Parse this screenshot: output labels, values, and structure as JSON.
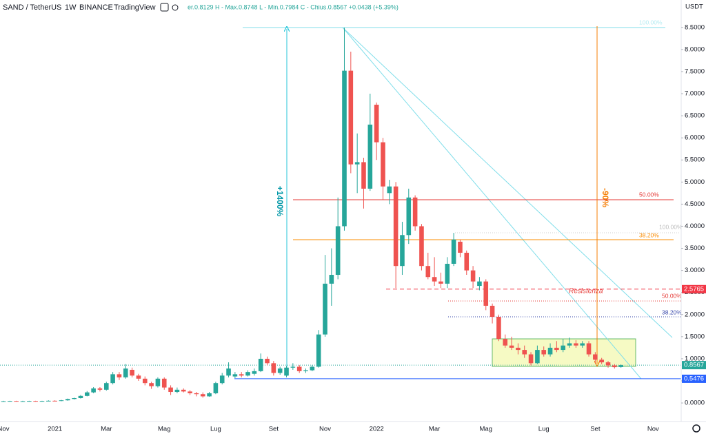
{
  "header": {
    "symbol": "SAND / TetherUS",
    "interval": "1W",
    "exchange": "BINANCE",
    "source": "TradingView",
    "ohlc": "er.0.8129 H - Max.0.8748 L - Min.0.7984 C - Chius.0.8567 +0.0438 (+5.39%)",
    "currency": "USDT"
  },
  "chart_data": {
    "type": "candlestick",
    "categories": [
      "Nov",
      null,
      null,
      null,
      null,
      null,
      null,
      null,
      "2021",
      null,
      null,
      null,
      null,
      null,
      null,
      null,
      "Mar",
      null,
      null,
      null,
      null,
      null,
      null,
      null,
      null,
      "Mag",
      null,
      null,
      null,
      null,
      null,
      null,
      null,
      "Lug",
      null,
      null,
      null,
      null,
      null,
      null,
      null,
      null,
      "Set",
      null,
      null,
      null,
      null,
      null,
      null,
      null,
      "Nov",
      null,
      null,
      null,
      null,
      null,
      null,
      null,
      "2022",
      null,
      null,
      null,
      null,
      null,
      null,
      null,
      null,
      "Mar",
      null,
      null,
      null,
      null,
      null,
      null,
      null,
      "Mag",
      null,
      null,
      null,
      null,
      null,
      null,
      null,
      null,
      "Lug",
      null,
      null,
      null,
      null,
      null,
      null,
      null,
      "Set",
      null,
      null,
      null,
      null,
      null,
      null,
      null,
      null,
      "Nov"
    ],
    "open": [
      0.04,
      0.04,
      0.045,
      0.04,
      0.04,
      0.045,
      0.04,
      0.045,
      0.05,
      0.045,
      0.06,
      0.09,
      0.11,
      0.16,
      0.24,
      0.33,
      0.3,
      0.45,
      0.65,
      0.58,
      0.75,
      0.62,
      0.55,
      0.45,
      0.38,
      0.55,
      0.35,
      0.25,
      0.3,
      0.26,
      0.22,
      0.2,
      0.15,
      0.22,
      0.45,
      0.62,
      0.6,
      0.65,
      0.62,
      0.66,
      0.72,
      1.0,
      0.9,
      0.68,
      0.62,
      0.8,
      0.82,
      0.72,
      0.74,
      0.82,
      1.55,
      2.7,
      2.9,
      4.0,
      7.52,
      5.4,
      5.45,
      4.85,
      6.75,
      5.9,
      4.75,
      4.9,
      3.1,
      3.8,
      4.65,
      4.0,
      3.1,
      2.85,
      2.75,
      2.7,
      3.15,
      3.65,
      3.4,
      3.0,
      2.65,
      2.75,
      2.2,
      1.95,
      1.45,
      1.3,
      1.25,
      1.2,
      1.1,
      0.9,
      1.2,
      1.1,
      1.25,
      1.2,
      1.3,
      1.35,
      1.3,
      1.35,
      1.1,
      0.98,
      0.92,
      0.85,
      0.8129,
      null,
      null,
      null,
      null,
      null
    ],
    "high": [
      0.05,
      0.05,
      0.05,
      0.05,
      0.05,
      0.05,
      0.05,
      0.06,
      0.06,
      0.07,
      0.1,
      0.12,
      0.18,
      0.27,
      0.36,
      0.36,
      0.48,
      0.7,
      0.7,
      0.88,
      0.8,
      0.66,
      0.6,
      0.48,
      0.58,
      0.58,
      0.4,
      0.35,
      0.33,
      0.29,
      0.25,
      0.24,
      0.25,
      0.48,
      0.68,
      0.92,
      0.7,
      0.7,
      0.74,
      0.78,
      1.12,
      1.05,
      0.95,
      0.82,
      0.84,
      0.9,
      0.86,
      0.78,
      0.86,
      1.65,
      3.35,
      3.5,
      4.65,
      8.49,
      7.95,
      6.1,
      5.55,
      7.0,
      6.8,
      6.0,
      5.05,
      5.0,
      4.1,
      4.85,
      4.7,
      4.05,
      3.4,
      3.3,
      2.95,
      3.3,
      3.85,
      3.7,
      3.45,
      3.1,
      2.85,
      2.8,
      2.25,
      2.0,
      1.55,
      1.5,
      1.35,
      1.3,
      1.15,
      1.3,
      1.28,
      1.35,
      1.4,
      1.45,
      1.48,
      1.42,
      1.4,
      1.4,
      1.15,
      1.02,
      0.95,
      0.88,
      0.8748,
      null,
      null,
      null,
      null,
      null
    ],
    "low": [
      0.03,
      0.03,
      0.03,
      0.03,
      0.03,
      0.03,
      0.03,
      0.04,
      0.04,
      0.04,
      0.05,
      0.08,
      0.1,
      0.15,
      0.22,
      0.26,
      0.28,
      0.42,
      0.52,
      0.55,
      0.58,
      0.5,
      0.4,
      0.32,
      0.35,
      0.3,
      0.18,
      0.22,
      0.24,
      0.18,
      0.15,
      0.12,
      0.14,
      0.2,
      0.42,
      0.58,
      0.56,
      0.58,
      0.6,
      0.62,
      0.7,
      0.85,
      0.62,
      0.64,
      0.58,
      0.75,
      0.68,
      0.68,
      0.72,
      0.8,
      1.5,
      2.2,
      2.8,
      3.9,
      5.2,
      4.75,
      4.4,
      4.8,
      5.5,
      4.6,
      4.5,
      2.6,
      2.9,
      3.6,
      3.9,
      3.0,
      2.8,
      2.65,
      2.6,
      2.6,
      3.1,
      3.3,
      2.9,
      2.6,
      2.55,
      2.1,
      1.8,
      1.4,
      1.25,
      1.2,
      1.1,
      1.02,
      0.85,
      0.88,
      1.05,
      1.05,
      1.15,
      1.15,
      1.25,
      1.25,
      1.25,
      1.05,
      0.9,
      0.88,
      0.8,
      0.78,
      0.7984,
      null,
      null,
      null,
      null,
      null
    ],
    "close": [
      0.04,
      0.045,
      0.04,
      0.04,
      0.045,
      0.04,
      0.045,
      0.05,
      0.045,
      0.06,
      0.09,
      0.11,
      0.16,
      0.24,
      0.33,
      0.3,
      0.45,
      0.65,
      0.58,
      0.78,
      0.62,
      0.55,
      0.45,
      0.38,
      0.55,
      0.35,
      0.25,
      0.3,
      0.26,
      0.22,
      0.2,
      0.15,
      0.22,
      0.45,
      0.62,
      0.78,
      0.65,
      0.62,
      0.7,
      0.72,
      1.0,
      0.9,
      0.68,
      0.78,
      0.8,
      0.82,
      0.72,
      0.74,
      0.82,
      1.55,
      2.7,
      2.9,
      4.0,
      7.52,
      5.4,
      5.45,
      4.85,
      6.3,
      5.9,
      4.9,
      4.9,
      3.1,
      3.8,
      4.65,
      4.0,
      3.1,
      2.85,
      2.75,
      2.7,
      3.15,
      3.7,
      3.4,
      3.0,
      2.75,
      2.75,
      2.2,
      1.95,
      1.45,
      1.3,
      1.25,
      1.2,
      1.1,
      0.9,
      1.2,
      1.1,
      1.25,
      1.2,
      1.3,
      1.35,
      1.3,
      1.35,
      1.1,
      0.98,
      0.92,
      0.85,
      0.81,
      0.8567,
      null,
      null,
      null,
      null,
      null
    ],
    "up_color": "#26a69a",
    "down_color": "#ef5350",
    "ylim": [
      -0.42,
      9.12
    ],
    "yticks": [
      {
        "value": 0,
        "label": "0.0000"
      },
      {
        "value": 0.5,
        "label": "0.5000"
      },
      {
        "value": 1,
        "label": "1.0000"
      },
      {
        "value": 1.5,
        "label": "1.5000"
      },
      {
        "value": 2,
        "label": "2.0000"
      },
      {
        "value": 2.5,
        "label": "2.5000"
      },
      {
        "value": 3,
        "label": "3.0000"
      },
      {
        "value": 3.5,
        "label": "3.5000"
      },
      {
        "value": 4,
        "label": "4.0000"
      },
      {
        "value": 4.5,
        "label": "4.5000"
      },
      {
        "value": 5,
        "label": "5.0000"
      },
      {
        "value": 5.5,
        "label": "5.5000"
      },
      {
        "value": 6,
        "label": "6.0000"
      },
      {
        "value": 6.5,
        "label": "6.5000"
      },
      {
        "value": 7,
        "label": "7.0000"
      },
      {
        "value": 7.5,
        "label": "7.5000"
      },
      {
        "value": 8,
        "label": "8.0000"
      },
      {
        "value": 8.5,
        "label": "8.5000"
      }
    ],
    "grid": false,
    "price_markers": [
      {
        "value": 2.5765,
        "color": "#f23645"
      },
      {
        "value": 0.8567,
        "color": "#26a69a"
      },
      {
        "value": 0.5476,
        "color": "#2962ff"
      }
    ],
    "annotations": {
      "measure_up": "+1400%",
      "measure_down": "-90%",
      "resistance": "Resistenza",
      "fib_top": [
        "100.00%",
        "50.00%",
        "38.20%"
      ],
      "fib_right": [
        "100.00%",
        "50.00%",
        "38.20%"
      ]
    }
  }
}
